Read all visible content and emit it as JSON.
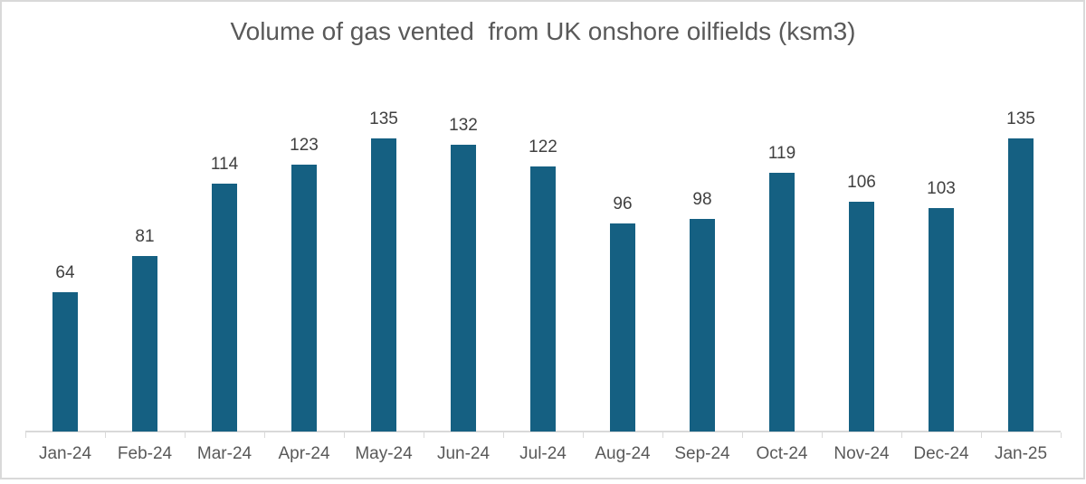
{
  "chart_data": {
    "type": "bar",
    "title": "Volume of gas vented  from UK onshore oilfields (ksm3)",
    "categories": [
      "Jan-24",
      "Feb-24",
      "Mar-24",
      "Apr-24",
      "May-24",
      "Jun-24",
      "Jul-24",
      "Aug-24",
      "Sep-24",
      "Oct-24",
      "Nov-24",
      "Dec-24",
      "Jan-25"
    ],
    "values": [
      64,
      81,
      114,
      123,
      135,
      132,
      122,
      96,
      98,
      119,
      106,
      103,
      135
    ],
    "xlabel": "",
    "ylabel": "",
    "ylim": [
      0,
      160
    ],
    "grid": false,
    "legend": false,
    "data_labels": "outside-end",
    "colors": {
      "bar_fill": "#156082",
      "data_label": "#404040",
      "axis_label": "#595959",
      "title": "#595959",
      "axis_line": "#d9d9d9",
      "frame_border": "#d9d9d9",
      "background": "#ffffff"
    }
  }
}
